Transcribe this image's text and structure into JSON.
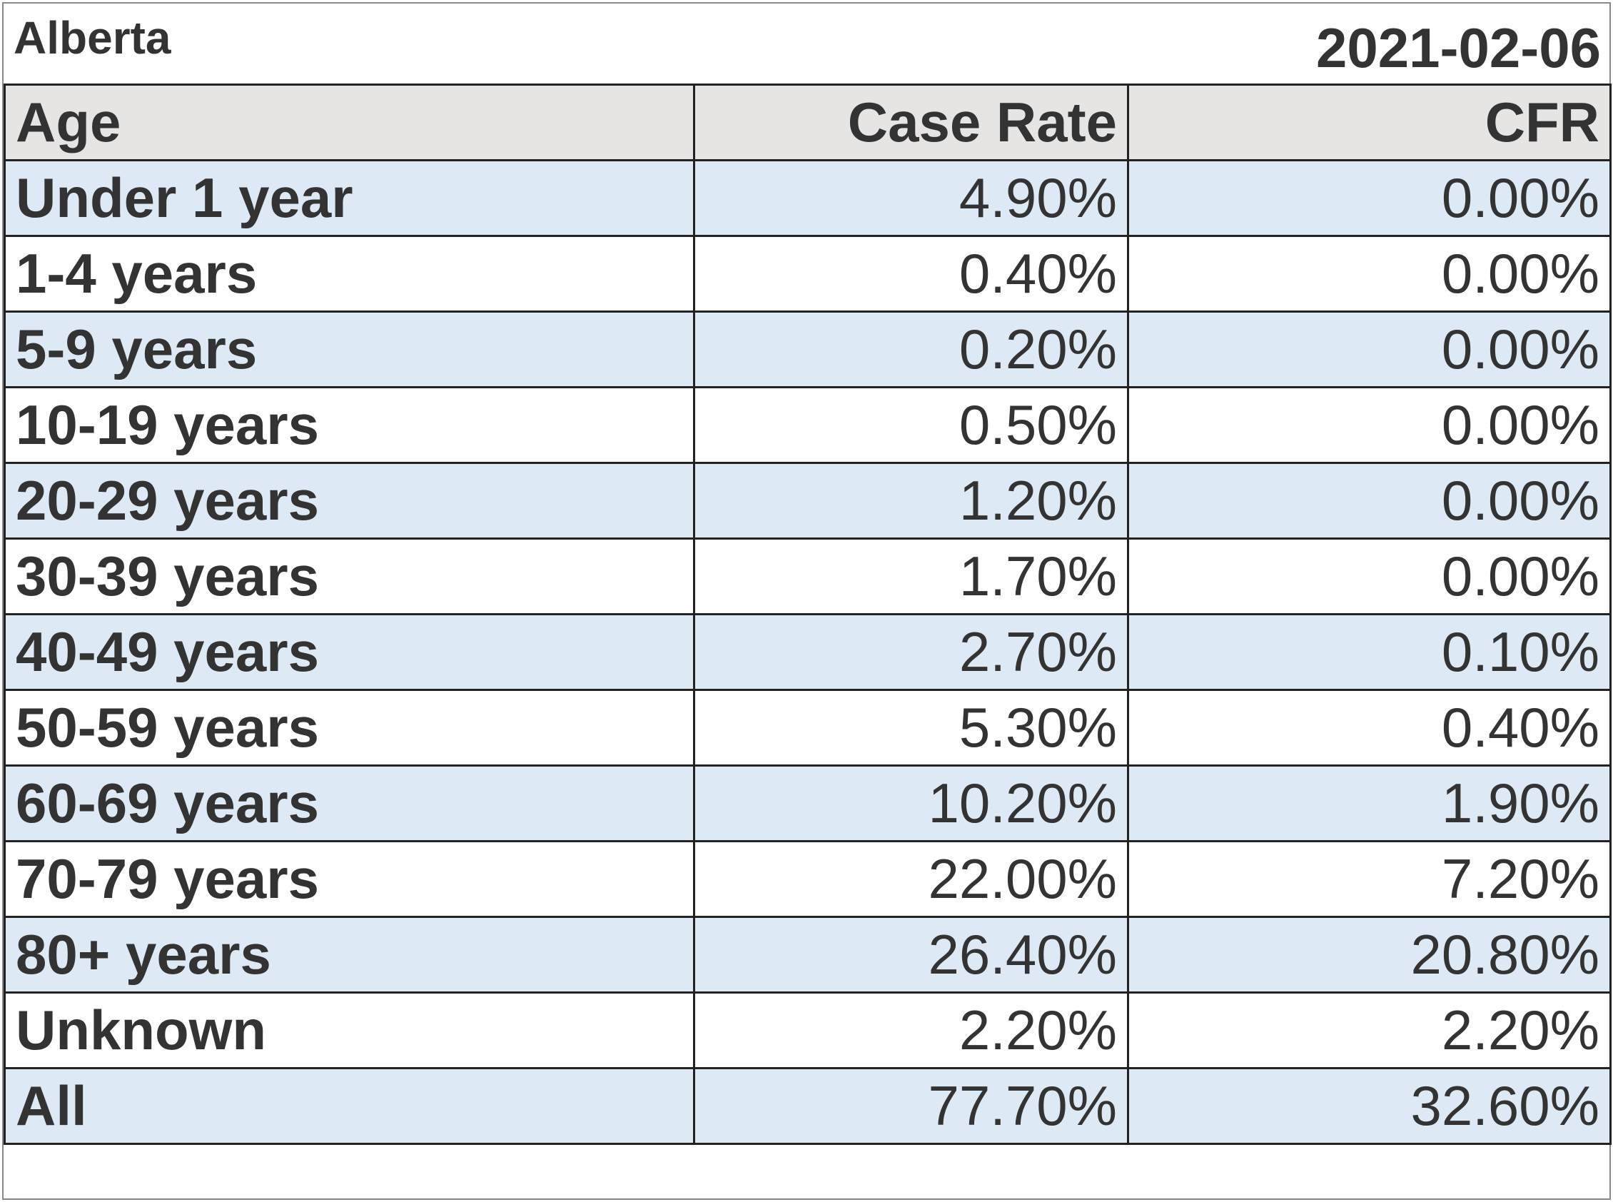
{
  "title": {
    "region": "Alberta",
    "date": "2021-02-06"
  },
  "columns": {
    "age": "Age",
    "case_rate": "Case Rate",
    "cfr": "CFR"
  },
  "colors": {
    "header_bg": "#e7e4e4",
    "band_bg": "#ddeaf5",
    "text": "#333333",
    "border": "#222222"
  },
  "rows": [
    {
      "age": "Under 1 year",
      "case_rate": "4.90%",
      "cfr": "0.00%"
    },
    {
      "age": "1-4 years",
      "case_rate": "0.40%",
      "cfr": "0.00%"
    },
    {
      "age": "5-9 years",
      "case_rate": "0.20%",
      "cfr": "0.00%"
    },
    {
      "age": "10-19 years",
      "case_rate": "0.50%",
      "cfr": "0.00%"
    },
    {
      "age": "20-29 years",
      "case_rate": "1.20%",
      "cfr": "0.00%"
    },
    {
      "age": "30-39 years",
      "case_rate": "1.70%",
      "cfr": "0.00%"
    },
    {
      "age": "40-49 years",
      "case_rate": "2.70%",
      "cfr": "0.10%"
    },
    {
      "age": "50-59 years",
      "case_rate": "5.30%",
      "cfr": "0.40%"
    },
    {
      "age": "60-69 years",
      "case_rate": "10.20%",
      "cfr": "1.90%"
    },
    {
      "age": "70-79 years",
      "case_rate": "22.00%",
      "cfr": "7.20%"
    },
    {
      "age": "80+ years",
      "case_rate": "26.40%",
      "cfr": "20.80%"
    },
    {
      "age": "Unknown",
      "case_rate": "2.20%",
      "cfr": "2.20%"
    },
    {
      "age": "All",
      "case_rate": "77.70%",
      "cfr": "32.60%"
    }
  ]
}
